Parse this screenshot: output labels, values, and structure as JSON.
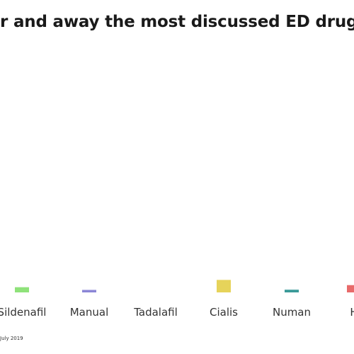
{
  "chart_data": {
    "type": "bar",
    "title": "r and away the most discussed ED drug",
    "categories": [
      "Sildenafil",
      "Manual",
      "Tadalafil",
      "Cialis",
      "Numan",
      "H"
    ],
    "values": [
      2.5,
      1.2,
      0,
      6,
      1.3,
      3.5
    ],
    "colors": [
      "#8fe27a",
      "#8b86d6",
      "#d9d9d9",
      "#e6d35a",
      "#3a9a98",
      "#e86a6a"
    ],
    "ylim": [
      0,
      120
    ],
    "grid": false,
    "xlabel": "",
    "ylabel": ""
  },
  "footer": {
    "note": "July 2019"
  }
}
